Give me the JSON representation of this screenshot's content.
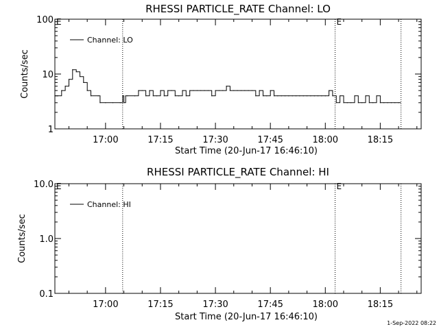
{
  "footer_timestamp": "1-Sep-2022 08:22",
  "chart_data": [
    {
      "type": "line",
      "title": "RHESSI PARTICLE_RATE Channel: LO",
      "xlabel": "Start Time (20-Jun-17 16:46:10)",
      "ylabel": "Counts/sec",
      "yscale": "log",
      "ylim": [
        1,
        100
      ],
      "yticks": [
        1,
        10,
        100
      ],
      "ytick_labels": [
        "1",
        "10",
        "100"
      ],
      "xlim_minutes": [
        "16:46:10",
        "18:26:10"
      ],
      "xticks": [
        "17:00",
        "17:15",
        "17:30",
        "17:45",
        "18:00",
        "18:15"
      ],
      "vlines": [
        "17:04:40",
        "18:02:40",
        "18:20:40"
      ],
      "markers": [
        {
          "label": "E",
          "at": "16:46:10"
        },
        {
          "label": "E",
          "at": "18:02:40"
        }
      ],
      "legend": {
        "label": "Channel: LO",
        "position": "top-left"
      },
      "series": [
        {
          "name": "Channel: LO",
          "x": [
            "16:46:10",
            "16:47:00",
            "16:48:00",
            "16:49:00",
            "16:50:00",
            "16:51:00",
            "16:52:00",
            "16:53:00",
            "16:54:00",
            "16:55:00",
            "16:56:00",
            "16:58:00",
            "16:58:30",
            "17:00:00",
            "17:02:00",
            "17:04:00",
            "17:04:40",
            "17:05:00",
            "17:05:30",
            "17:06:00",
            "17:08:00",
            "17:09:00",
            "17:10:00",
            "17:11:00",
            "17:12:00",
            "17:13:00",
            "17:14:00",
            "17:15:00",
            "17:16:00",
            "17:17:00",
            "17:18:00",
            "17:19:00",
            "17:20:00",
            "17:21:00",
            "17:22:00",
            "17:23:00",
            "17:24:00",
            "17:25:00",
            "17:26:00",
            "17:27:00",
            "17:28:00",
            "17:29:00",
            "17:30:00",
            "17:31:00",
            "17:32:00",
            "17:33:00",
            "17:34:00",
            "17:35:00",
            "17:36:00",
            "17:37:00",
            "17:38:00",
            "17:39:00",
            "17:40:00",
            "17:41:00",
            "17:42:00",
            "17:43:00",
            "17:44:00",
            "17:45:00",
            "17:46:00",
            "17:47:00",
            "17:48:00",
            "17:49:00",
            "17:50:00",
            "17:51:00",
            "17:52:00",
            "17:53:00",
            "17:54:00",
            "17:55:00",
            "17:56:00",
            "17:57:00",
            "17:58:00",
            "17:59:00",
            "18:00:00",
            "18:01:00",
            "18:02:00",
            "18:03:00",
            "18:04:00",
            "18:05:00",
            "18:06:00",
            "18:07:00",
            "18:08:00",
            "18:09:00",
            "18:10:00",
            "18:11:00",
            "18:12:00",
            "18:13:00",
            "18:14:00",
            "18:15:00",
            "18:16:00",
            "18:17:00",
            "18:18:00",
            "18:19:00",
            "18:20:00",
            "18:20:30"
          ],
          "values": [
            4,
            4,
            5,
            6,
            8,
            12,
            11,
            9,
            7,
            5,
            4,
            4,
            3,
            3,
            3,
            3,
            4,
            3,
            4,
            4,
            4,
            5,
            5,
            4,
            5,
            4,
            4,
            5,
            4,
            5,
            5,
            4,
            4,
            5,
            4,
            5,
            5,
            5,
            5,
            5,
            5,
            4,
            5,
            5,
            5,
            6,
            5,
            5,
            5,
            5,
            5,
            5,
            5,
            4,
            5,
            4,
            4,
            5,
            4,
            4,
            4,
            4,
            4,
            4,
            4,
            4,
            4,
            4,
            4,
            4,
            4,
            4,
            4,
            5,
            4,
            3,
            4,
            3,
            3,
            3,
            4,
            3,
            3,
            4,
            3,
            3,
            4,
            3,
            3,
            3,
            3,
            3,
            3,
            3
          ]
        }
      ]
    },
    {
      "type": "line",
      "title": "RHESSI PARTICLE_RATE Channel: HI",
      "xlabel": "Start Time (20-Jun-17 16:46:10)",
      "ylabel": "Counts/sec",
      "yscale": "log",
      "ylim": [
        0.1,
        10
      ],
      "yticks": [
        0.1,
        1,
        10
      ],
      "ytick_labels": [
        "0.1",
        "1.0",
        "10.0"
      ],
      "xlim_minutes": [
        "16:46:10",
        "18:26:10"
      ],
      "xticks": [
        "17:00",
        "17:15",
        "17:30",
        "17:45",
        "18:00",
        "18:15"
      ],
      "vlines": [
        "17:04:40",
        "18:02:40",
        "18:20:40"
      ],
      "markers": [
        {
          "label": "E",
          "at": "16:46:10"
        },
        {
          "label": "E",
          "at": "18:02:40"
        }
      ],
      "legend": {
        "label": "Channel: HI",
        "position": "top-left"
      },
      "series": [
        {
          "name": "Channel: HI",
          "x": [],
          "values": []
        }
      ]
    }
  ]
}
